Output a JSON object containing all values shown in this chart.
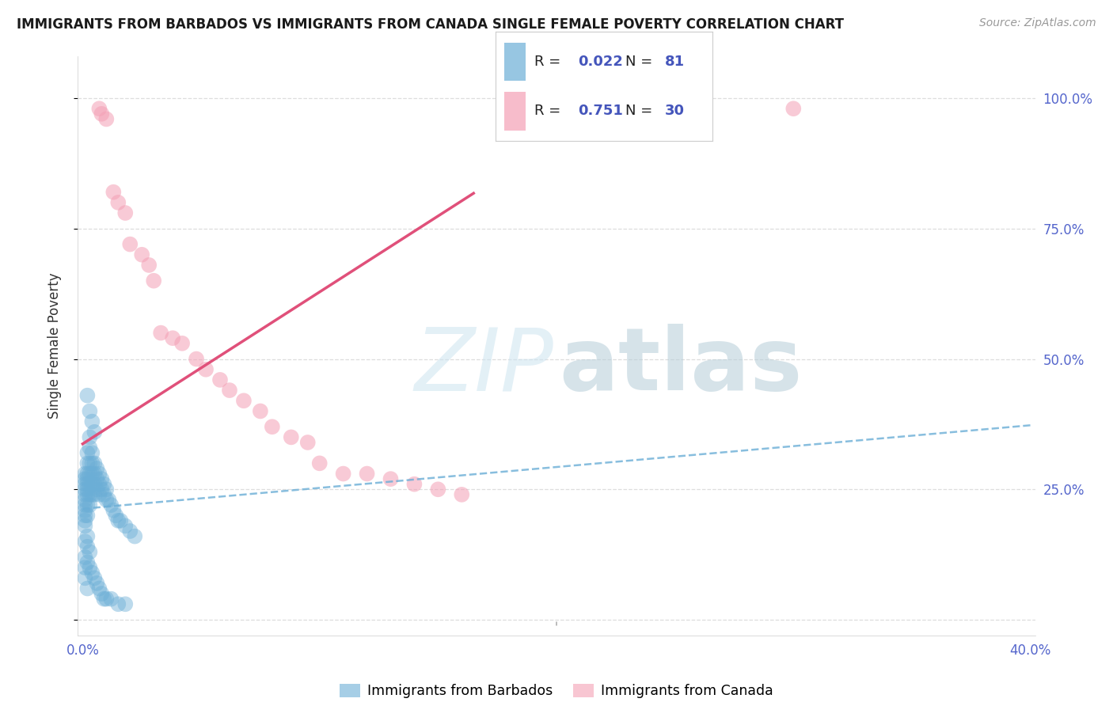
{
  "title": "IMMIGRANTS FROM BARBADOS VS IMMIGRANTS FROM CANADA SINGLE FEMALE POVERTY CORRELATION CHART",
  "source": "Source: ZipAtlas.com",
  "ylabel": "Single Female Poverty",
  "xlim": [
    -0.002,
    0.402
  ],
  "ylim": [
    -0.03,
    1.08
  ],
  "barbados_R": 0.022,
  "barbados_N": 81,
  "canada_R": 0.751,
  "canada_N": 30,
  "barbados_color": "#6baed6",
  "canada_color": "#f4a0b5",
  "trend_barbados_color": "#6baed6",
  "trend_canada_color": "#e0507a",
  "background_color": "#ffffff",
  "grid_color": "#dddddd",
  "barbados_x": [
    0.001,
    0.001,
    0.001,
    0.001,
    0.001,
    0.001,
    0.001,
    0.001,
    0.001,
    0.001,
    0.002,
    0.002,
    0.002,
    0.002,
    0.002,
    0.002,
    0.002,
    0.002,
    0.002,
    0.003,
    0.003,
    0.003,
    0.003,
    0.003,
    0.003,
    0.003,
    0.004,
    0.004,
    0.004,
    0.004,
    0.004,
    0.005,
    0.005,
    0.005,
    0.005,
    0.006,
    0.006,
    0.006,
    0.007,
    0.007,
    0.007,
    0.008,
    0.008,
    0.009,
    0.009,
    0.01,
    0.01,
    0.011,
    0.012,
    0.013,
    0.014,
    0.015,
    0.016,
    0.018,
    0.02,
    0.022,
    0.001,
    0.001,
    0.001,
    0.002,
    0.002,
    0.003,
    0.003,
    0.004,
    0.005,
    0.006,
    0.007,
    0.008,
    0.009,
    0.01,
    0.012,
    0.015,
    0.018,
    0.002,
    0.003,
    0.004,
    0.005,
    0.001,
    0.002,
    0.001,
    0.002
  ],
  "barbados_y": [
    0.28,
    0.27,
    0.26,
    0.25,
    0.24,
    0.23,
    0.22,
    0.21,
    0.2,
    0.19,
    0.32,
    0.3,
    0.28,
    0.27,
    0.26,
    0.25,
    0.24,
    0.22,
    0.2,
    0.35,
    0.33,
    0.3,
    0.28,
    0.26,
    0.24,
    0.22,
    0.32,
    0.3,
    0.28,
    0.26,
    0.24,
    0.3,
    0.28,
    0.26,
    0.24,
    0.29,
    0.27,
    0.25,
    0.28,
    0.26,
    0.24,
    0.27,
    0.25,
    0.26,
    0.24,
    0.25,
    0.23,
    0.23,
    0.22,
    0.21,
    0.2,
    0.19,
    0.19,
    0.18,
    0.17,
    0.16,
    0.15,
    0.12,
    0.1,
    0.14,
    0.11,
    0.13,
    0.1,
    0.09,
    0.08,
    0.07,
    0.06,
    0.05,
    0.04,
    0.04,
    0.04,
    0.03,
    0.03,
    0.43,
    0.4,
    0.38,
    0.36,
    0.18,
    0.16,
    0.08,
    0.06
  ],
  "canada_x": [
    0.007,
    0.008,
    0.01,
    0.013,
    0.015,
    0.018,
    0.02,
    0.025,
    0.028,
    0.03,
    0.033,
    0.038,
    0.042,
    0.048,
    0.052,
    0.058,
    0.062,
    0.068,
    0.075,
    0.08,
    0.088,
    0.095,
    0.1,
    0.11,
    0.12,
    0.13,
    0.14,
    0.15,
    0.16,
    0.3
  ],
  "canada_y": [
    0.98,
    0.97,
    0.96,
    0.82,
    0.8,
    0.78,
    0.72,
    0.7,
    0.68,
    0.65,
    0.55,
    0.54,
    0.53,
    0.5,
    0.48,
    0.46,
    0.44,
    0.42,
    0.4,
    0.37,
    0.35,
    0.34,
    0.3,
    0.28,
    0.28,
    0.27,
    0.26,
    0.25,
    0.24,
    0.98
  ],
  "legend_R1": "0.022",
  "legend_N1": "81",
  "legend_R2": "0.751",
  "legend_N2": "30",
  "legend_label1": "Immigrants from Barbados",
  "legend_label2": "Immigrants from Canada"
}
